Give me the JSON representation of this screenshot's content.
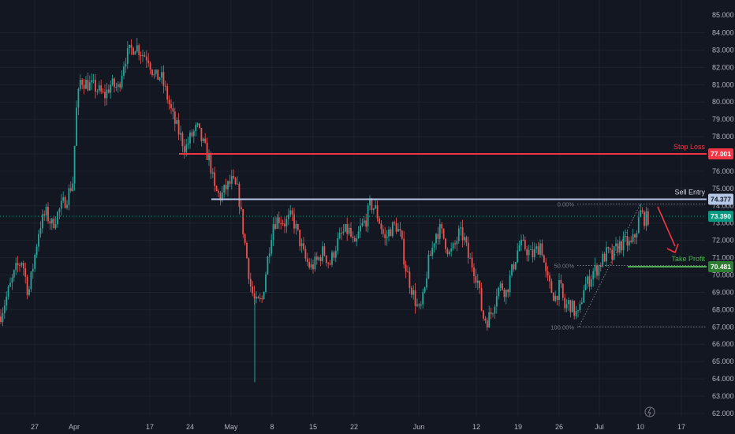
{
  "chart_data": {
    "type": "candlestick",
    "colors": {
      "background": "#131722",
      "up": "#26a69a",
      "down": "#ef5350",
      "grid": "#1e222d",
      "stop_loss": "#f23645",
      "entry": "#b4c7e7",
      "take_profit": "#4caf50",
      "current": "#089981",
      "axis_text": "#b2b5be",
      "fib": "#787b86",
      "arrow": "#f23645"
    },
    "y_ticks": [
      "84.000",
      "83.000",
      "82.000",
      "81.000",
      "80.000",
      "79.000",
      "78.000",
      "77.000",
      "76.000",
      "75.000",
      "74.000",
      "73.000",
      "72.000",
      "71.000",
      "70.000",
      "69.000",
      "68.000",
      "67.000",
      "66.000",
      "65.000",
      "64.000",
      "63.000",
      "62.000"
    ],
    "y_top_label": "85.000",
    "x_ticks": [
      "27",
      "Apr",
      "17",
      "24",
      "May",
      "8",
      "15",
      "22",
      "Jun",
      "12",
      "19",
      "26",
      "Jul",
      "10",
      "17"
    ],
    "ylim": [
      62,
      85
    ],
    "levels": {
      "stop_loss": {
        "label": "Stop Loss",
        "value": 77.001,
        "value_text": "77.001"
      },
      "sell_entry": {
        "label": "Sell Entry",
        "value": 74.377,
        "value_text": "74.377"
      },
      "take_profit": {
        "label": "Take Profit",
        "value": 70.481,
        "value_text": "70.481"
      },
      "current_price": {
        "value": 73.39,
        "value_text": "73.390"
      }
    },
    "fib": [
      {
        "label": "0.00%",
        "value": 74.1
      },
      {
        "label": "50.00%",
        "value": 70.55
      },
      {
        "label": "100.00%",
        "value": 67.0
      }
    ],
    "path": [
      [
        0,
        67.6
      ],
      [
        14,
        69.5
      ],
      [
        20,
        70.3
      ],
      [
        28,
        70.9
      ],
      [
        36,
        68.9
      ],
      [
        44,
        71.1
      ],
      [
        50,
        72.8
      ],
      [
        58,
        73.6
      ],
      [
        66,
        72.9
      ],
      [
        76,
        73.8
      ],
      [
        85,
        74.5
      ],
      [
        93,
        75.5
      ],
      [
        96,
        79.2
      ],
      [
        102,
        81.3
      ],
      [
        112,
        81.0
      ],
      [
        122,
        80.8
      ],
      [
        132,
        80.3
      ],
      [
        140,
        81.0
      ],
      [
        150,
        80.8
      ],
      [
        158,
        82.5
      ],
      [
        166,
        83.0
      ],
      [
        172,
        83.3
      ],
      [
        180,
        82.8
      ],
      [
        188,
        82.6
      ],
      [
        196,
        81.4
      ],
      [
        204,
        81.5
      ],
      [
        212,
        80.3
      ],
      [
        220,
        79.0
      ],
      [
        228,
        78.1
      ],
      [
        235,
        77.3
      ],
      [
        242,
        78.0
      ],
      [
        250,
        78.5
      ],
      [
        258,
        77.5
      ],
      [
        266,
        76.6
      ],
      [
        272,
        74.9
      ],
      [
        280,
        74.5
      ],
      [
        286,
        75.0
      ],
      [
        294,
        75.4
      ],
      [
        302,
        74.8
      ],
      [
        310,
        72.0
      ],
      [
        318,
        69.3
      ],
      [
        324,
        68.3
      ],
      [
        332,
        68.5
      ],
      [
        338,
        70.5
      ],
      [
        346,
        73.0
      ],
      [
        354,
        73.3
      ],
      [
        362,
        73.0
      ],
      [
        370,
        73.4
      ],
      [
        378,
        72.3
      ],
      [
        386,
        71.0
      ],
      [
        394,
        70.4
      ],
      [
        402,
        70.8
      ],
      [
        410,
        71.4
      ],
      [
        418,
        70.6
      ],
      [
        426,
        71.7
      ],
      [
        434,
        72.4
      ],
      [
        442,
        72.6
      ],
      [
        450,
        71.5
      ],
      [
        456,
        72.6
      ],
      [
        464,
        73.2
      ],
      [
        470,
        74.1
      ],
      [
        476,
        73.8
      ],
      [
        482,
        73.0
      ],
      [
        488,
        72.0
      ],
      [
        494,
        72.6
      ],
      [
        502,
        72.9
      ],
      [
        508,
        72.2
      ],
      [
        514,
        70.5
      ],
      [
        520,
        69.5
      ],
      [
        526,
        68.6
      ],
      [
        532,
        67.8
      ],
      [
        538,
        68.9
      ],
      [
        542,
        70.5
      ],
      [
        548,
        71.5
      ],
      [
        552,
        72.4
      ],
      [
        558,
        72.6
      ],
      [
        564,
        72.0
      ],
      [
        570,
        71.2
      ],
      [
        576,
        71.6
      ],
      [
        582,
        72.4
      ],
      [
        588,
        72.2
      ],
      [
        594,
        71.0
      ],
      [
        600,
        70.5
      ],
      [
        606,
        69.6
      ],
      [
        612,
        67.6
      ],
      [
        618,
        67.4
      ],
      [
        624,
        67.9
      ],
      [
        630,
        69.1
      ],
      [
        636,
        69.4
      ],
      [
        642,
        69.0
      ],
      [
        650,
        70.4
      ],
      [
        658,
        71.7
      ],
      [
        666,
        71.6
      ],
      [
        674,
        71.1
      ],
      [
        680,
        71.4
      ],
      [
        686,
        71.9
      ],
      [
        692,
        70.0
      ],
      [
        698,
        69.2
      ],
      [
        704,
        68.7
      ],
      [
        710,
        69.4
      ],
      [
        716,
        68.1
      ],
      [
        722,
        68.4
      ],
      [
        728,
        67.9
      ],
      [
        734,
        67.6
      ],
      [
        740,
        69.3
      ],
      [
        746,
        69.6
      ],
      [
        752,
        70.2
      ],
      [
        758,
        70.4
      ],
      [
        764,
        70.9
      ],
      [
        770,
        71.3
      ],
      [
        776,
        71.0
      ],
      [
        782,
        71.6
      ],
      [
        788,
        71.8
      ],
      [
        794,
        71.9
      ],
      [
        800,
        71.7
      ],
      [
        806,
        72.4
      ],
      [
        812,
        73.6
      ],
      [
        818,
        73.2
      ],
      [
        824,
        73.4
      ]
    ],
    "spike_wick": {
      "x": 323,
      "low": 63.8,
      "high": 68.6
    }
  }
}
